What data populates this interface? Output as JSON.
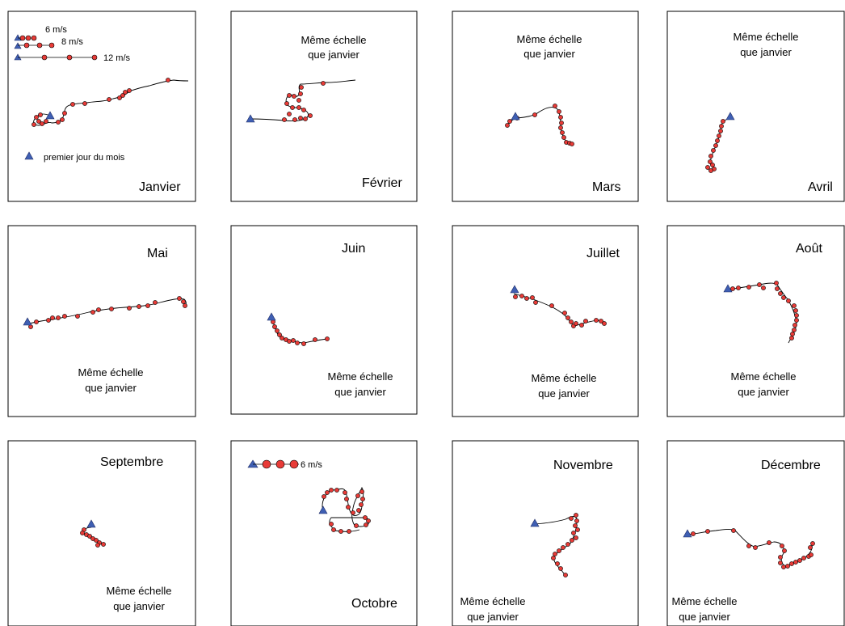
{
  "legend": {
    "entries": [
      "6 m/s",
      "8 m/s",
      "12 m/s"
    ],
    "first_day_label": "premier jour du mois"
  },
  "october_legend": {
    "entry": "6 m/s"
  },
  "scale_note": [
    "Même échelle",
    "que janvier"
  ],
  "colors": {
    "triangle": "#3f5fb3",
    "dot": "#e83b37",
    "line": "#000000",
    "panel_border": "#000000"
  },
  "panels": [
    {
      "month": "Janvier"
    },
    {
      "month": "Février"
    },
    {
      "month": "Mars"
    },
    {
      "month": "Avril"
    },
    {
      "month": "Mai"
    },
    {
      "month": "Juin"
    },
    {
      "month": "Juillet"
    },
    {
      "month": "Août"
    },
    {
      "month": "Septembre"
    },
    {
      "month": "Octobre"
    },
    {
      "month": "Novembre"
    },
    {
      "month": "Décembre"
    }
  ]
}
